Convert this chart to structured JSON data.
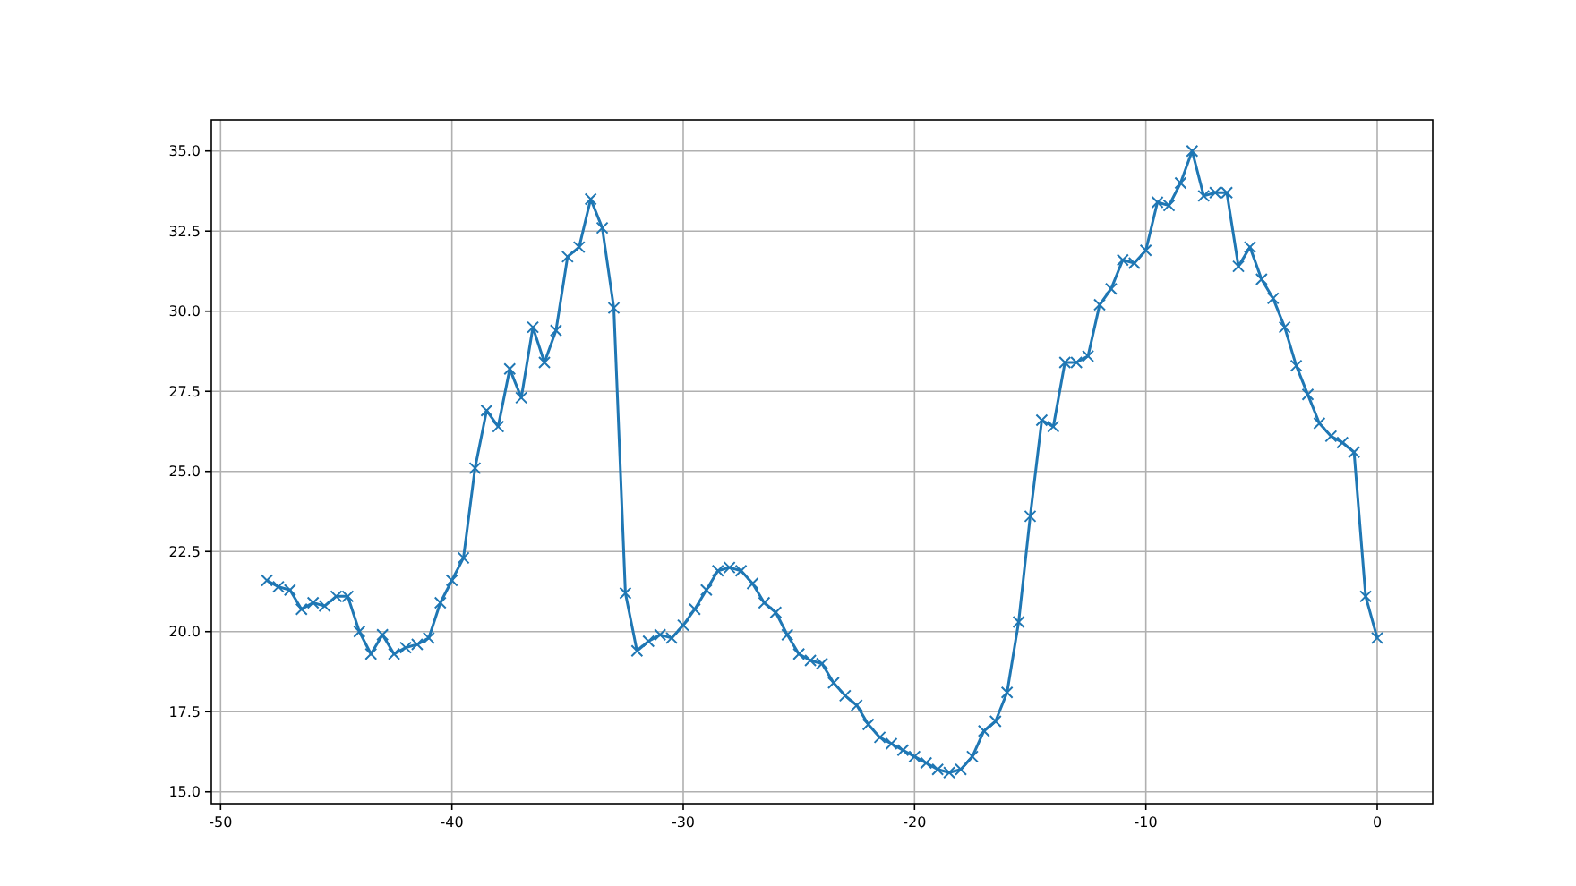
{
  "chart_data": {
    "type": "line",
    "x": [
      -48,
      -47.5,
      -47,
      -46.5,
      -46,
      -45.5,
      -45,
      -44.5,
      -44,
      -43.5,
      -43,
      -42.5,
      -42,
      -41.5,
      -41,
      -40.5,
      -40,
      -39.5,
      -39,
      -38.5,
      -38,
      -37.5,
      -37,
      -36.5,
      -36,
      -35.5,
      -35,
      -34.5,
      -34,
      -33.5,
      -33,
      -32.5,
      -32,
      -31.5,
      -31,
      -30.5,
      -30,
      -29.5,
      -29,
      -28.5,
      -28,
      -27.5,
      -27,
      -26.5,
      -26,
      -25.5,
      -25,
      -24.5,
      -24,
      -23.5,
      -23,
      -22.5,
      -22,
      -21.5,
      -21,
      -20.5,
      -20,
      -19.5,
      -19,
      -18.5,
      -18,
      -17.5,
      -17,
      -16.5,
      -16,
      -15.5,
      -15,
      -14.5,
      -14,
      -13.5,
      -13,
      -12.5,
      -12,
      -11.5,
      -11,
      -10.5,
      -10,
      -9.5,
      -9,
      -8.5,
      -8,
      -7.5,
      -7,
      -6.5,
      -6,
      -5.5,
      -5,
      -4.5,
      -4,
      -3.5,
      -3,
      -2.5,
      -2,
      -1.5,
      -1,
      -0.5,
      0
    ],
    "series": [
      {
        "color": "#1f77b4",
        "values": [
          21.6,
          21.4,
          21.3,
          20.7,
          20.9,
          20.8,
          21.1,
          21.1,
          20.0,
          19.3,
          19.9,
          19.3,
          19.5,
          19.6,
          19.8,
          20.9,
          21.6,
          22.3,
          25.1,
          26.9,
          26.4,
          28.2,
          27.3,
          29.5,
          28.4,
          29.4,
          31.7,
          32.0,
          33.5,
          32.6,
          30.1,
          21.2,
          19.4,
          19.7,
          19.9,
          19.8,
          20.2,
          20.7,
          21.3,
          21.9,
          22.0,
          21.9,
          21.5,
          20.9,
          20.6,
          19.9,
          19.3,
          19.1,
          19.0,
          18.4,
          18.0,
          17.7,
          17.1,
          16.7,
          16.5,
          16.3,
          16.1,
          15.9,
          15.7,
          15.6,
          15.7,
          16.1,
          16.9,
          17.2,
          18.1,
          20.3,
          23.6,
          26.6,
          26.4,
          28.4,
          28.4,
          28.6,
          30.2,
          30.7,
          31.6,
          31.5,
          31.9,
          33.4,
          33.3,
          34.0,
          35.0,
          33.6,
          33.7,
          33.7,
          31.4,
          32.0,
          31.0,
          30.4,
          29.5,
          28.3,
          27.4,
          26.5,
          26.1,
          25.9,
          25.6,
          21.1,
          19.8
        ]
      }
    ],
    "xlim": [
      -50.4,
      2.4
    ],
    "xticks": [
      -50,
      -40,
      -30,
      -20,
      -10,
      0
    ],
    "ylim": [
      14.63,
      35.97
    ],
    "yticks": [
      {
        "value": 15,
        "label": "15.0"
      },
      {
        "value": 17.5,
        "label": "17.5"
      },
      {
        "value": 20,
        "label": "20.0"
      },
      {
        "value": 22.5,
        "label": "22.5"
      },
      {
        "value": 25,
        "label": "25.0"
      },
      {
        "value": 27.5,
        "label": "27.5"
      },
      {
        "value": 30,
        "label": "30.0"
      },
      {
        "value": 32.5,
        "label": "32.5"
      },
      {
        "value": 35,
        "label": "35.0"
      }
    ],
    "grid": true,
    "marker": "cross",
    "line_style": "solid"
  }
}
